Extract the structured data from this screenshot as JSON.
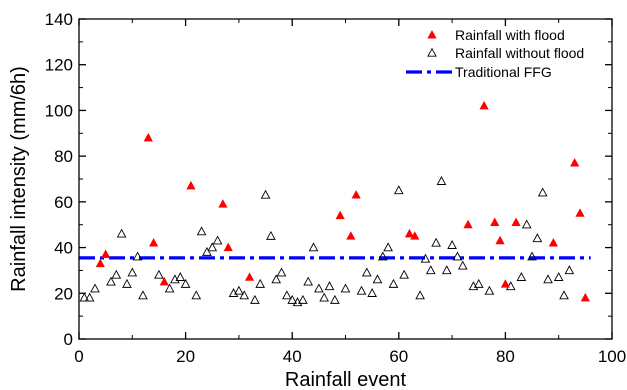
{
  "chart_data": {
    "type": "scatter",
    "title": "",
    "xlabel": "Rainfall event",
    "ylabel": "Rainfall intensity (mm/6h)",
    "xlim": [
      0,
      100
    ],
    "ylim": [
      0,
      140
    ],
    "xticks": [
      0,
      20,
      40,
      60,
      80,
      100
    ],
    "yticks": [
      0,
      20,
      40,
      60,
      80,
      100,
      120,
      140
    ],
    "grid": false,
    "legend_position": "top-right",
    "series": [
      {
        "name": "Rainfall with flood",
        "marker": "filled-triangle",
        "color": "#ff0000",
        "points": [
          [
            4,
            33
          ],
          [
            5,
            37
          ],
          [
            13,
            88
          ],
          [
            14,
            42
          ],
          [
            16,
            25
          ],
          [
            21,
            67
          ],
          [
            27,
            59
          ],
          [
            28,
            40
          ],
          [
            32,
            27
          ],
          [
            49,
            54
          ],
          [
            51,
            45
          ],
          [
            52,
            63
          ],
          [
            62,
            46
          ],
          [
            63,
            45
          ],
          [
            73,
            50
          ],
          [
            76,
            102
          ],
          [
            78,
            51
          ],
          [
            79,
            43
          ],
          [
            80,
            24
          ],
          [
            82,
            51
          ],
          [
            89,
            42
          ],
          [
            93,
            77
          ],
          [
            94,
            55
          ],
          [
            95,
            18
          ]
        ]
      },
      {
        "name": "Rainfall without flood",
        "marker": "open-triangle",
        "color": "#000000",
        "points": [
          [
            1,
            18
          ],
          [
            2,
            18
          ],
          [
            3,
            22
          ],
          [
            6,
            25
          ],
          [
            7,
            28
          ],
          [
            8,
            46
          ],
          [
            9,
            24
          ],
          [
            10,
            29
          ],
          [
            11,
            36
          ],
          [
            12,
            19
          ],
          [
            15,
            28
          ],
          [
            17,
            22
          ],
          [
            18,
            26
          ],
          [
            19,
            27
          ],
          [
            20,
            24
          ],
          [
            22,
            19
          ],
          [
            23,
            47
          ],
          [
            24,
            38
          ],
          [
            25,
            40
          ],
          [
            26,
            43
          ],
          [
            29,
            20
          ],
          [
            30,
            21
          ],
          [
            31,
            19
          ],
          [
            33,
            17
          ],
          [
            34,
            24
          ],
          [
            35,
            63
          ],
          [
            36,
            45
          ],
          [
            37,
            26
          ],
          [
            38,
            29
          ],
          [
            39,
            19
          ],
          [
            40,
            17
          ],
          [
            41,
            16
          ],
          [
            42,
            17
          ],
          [
            43,
            25
          ],
          [
            44,
            40
          ],
          [
            45,
            22
          ],
          [
            46,
            18
          ],
          [
            47,
            23
          ],
          [
            48,
            17
          ],
          [
            50,
            22
          ],
          [
            53,
            21
          ],
          [
            54,
            29
          ],
          [
            55,
            20
          ],
          [
            56,
            26
          ],
          [
            57,
            36
          ],
          [
            58,
            40
          ],
          [
            59,
            24
          ],
          [
            60,
            65
          ],
          [
            61,
            28
          ],
          [
            64,
            19
          ],
          [
            65,
            35
          ],
          [
            66,
            30
          ],
          [
            67,
            42
          ],
          [
            68,
            69
          ],
          [
            69,
            30
          ],
          [
            70,
            41
          ],
          [
            71,
            36
          ],
          [
            72,
            32
          ],
          [
            74,
            23
          ],
          [
            75,
            24
          ],
          [
            77,
            21
          ],
          [
            81,
            23
          ],
          [
            83,
            27
          ],
          [
            84,
            50
          ],
          [
            85,
            36
          ],
          [
            86,
            44
          ],
          [
            87,
            64
          ],
          [
            88,
            26
          ],
          [
            90,
            27
          ],
          [
            91,
            19
          ],
          [
            92,
            30
          ]
        ]
      }
    ],
    "reference_line": {
      "name": "Traditional FFG",
      "style": "dash-dot",
      "color": "#0000ff",
      "y": 35.5,
      "x_range": [
        0,
        96
      ]
    }
  }
}
